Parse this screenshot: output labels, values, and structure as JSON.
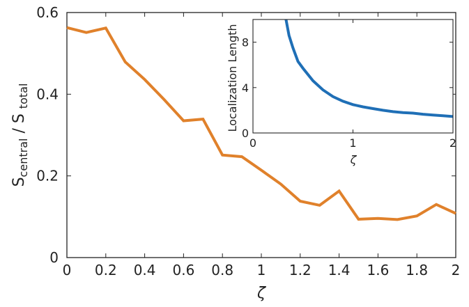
{
  "chart_data": [
    {
      "type": "line",
      "xlabel": "ζ",
      "ylabel": "S_central / S total",
      "ylabel_parts": {
        "main_s": "S",
        "main_sub": "central",
        "rest": " / S ",
        "rest_sub": "total"
      },
      "xlim": [
        0,
        2
      ],
      "ylim": [
        0,
        0.6
      ],
      "xticks": [
        0,
        0.2,
        0.4,
        0.6,
        0.8,
        1,
        1.2,
        1.4,
        1.6,
        1.8,
        2
      ],
      "xtick_labels": [
        "0",
        "0.2",
        "0.4",
        "0.6",
        "0.8",
        "1",
        "1.2",
        "1.4",
        "1.6",
        "1.8",
        "2"
      ],
      "yticks": [
        0,
        0.2,
        0.4,
        0.6
      ],
      "ytick_labels": [
        "0",
        "0.2",
        "0.4",
        "0.6"
      ],
      "grid": false,
      "series": [
        {
          "color": "#e0812b",
          "x": [
            0,
            0.1,
            0.2,
            0.3,
            0.4,
            0.5,
            0.6,
            0.7,
            0.8,
            0.9,
            1.0,
            1.1,
            1.2,
            1.3,
            1.4,
            1.5,
            1.6,
            1.7,
            1.8,
            1.9,
            2.0
          ],
          "y": [
            0.563,
            0.551,
            0.562,
            0.479,
            0.436,
            0.387,
            0.335,
            0.339,
            0.251,
            0.247,
            0.214,
            0.18,
            0.138,
            0.128,
            0.163,
            0.094,
            0.096,
            0.093,
            0.102,
            0.13,
            0.108
          ]
        }
      ]
    },
    {
      "type": "line",
      "role": "inset",
      "xlabel": "ζ",
      "ylabel": "Localization Length",
      "xlim": [
        0,
        2
      ],
      "ylim": [
        0,
        10
      ],
      "xticks": [
        0,
        1,
        2
      ],
      "xtick_labels": [
        "0",
        "1",
        "2"
      ],
      "yticks": [
        0,
        4,
        8
      ],
      "ytick_labels": [
        "0",
        "4",
        "8"
      ],
      "grid": false,
      "series": [
        {
          "color": "#1f6fb6",
          "x": [
            0.33,
            0.36,
            0.4,
            0.45,
            0.5,
            0.6,
            0.7,
            0.8,
            0.9,
            1.0,
            1.1,
            1.2,
            1.3,
            1.4,
            1.5,
            1.6,
            1.7,
            1.8,
            1.9,
            2.0
          ],
          "y": [
            10.0,
            8.6,
            7.5,
            6.3,
            5.7,
            4.6,
            3.8,
            3.2,
            2.8,
            2.5,
            2.3,
            2.15,
            2.0,
            1.88,
            1.8,
            1.75,
            1.65,
            1.58,
            1.52,
            1.45
          ]
        }
      ]
    }
  ]
}
